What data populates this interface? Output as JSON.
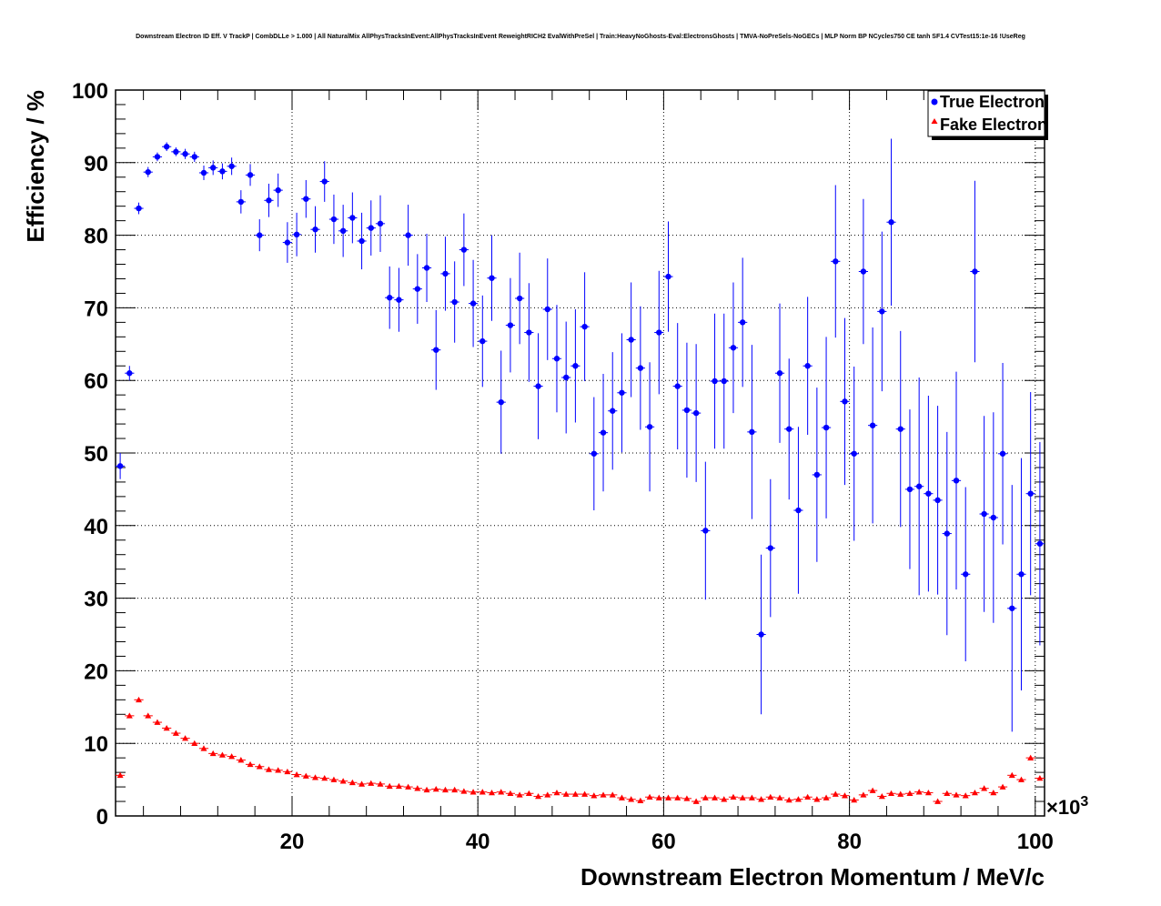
{
  "chart_data": {
    "type": "scatter",
    "title": "Downstream Electron ID Eff. V TrackP | CombDLLe > 1.000 | All NaturalMix AllPhysTracksInEvent:AllPhysTracksInEvent ReweightRICH2 EvalWithPreSel | Train:HeavyNoGhosts-Eval:ElectronsGhosts | TMVA-NoPreSels-NoGECs | MLP Norm BP NCycles750 CE tanh SF1.4 CVTest15:1e-16 !UseReg",
    "xlabel": "Downstream Electron Momentum / MeV/c",
    "ylabel": "Efficiency / %",
    "x_exponent_label": "×10",
    "x_exponent_power": "3",
    "xlim": [
      1,
      101
    ],
    "ylim": [
      0,
      100
    ],
    "x_ticks": [
      20,
      40,
      60,
      80,
      100
    ],
    "y_ticks": [
      0,
      10,
      20,
      30,
      40,
      50,
      60,
      70,
      80,
      90,
      100
    ],
    "grid": true,
    "legend_position": "top-right",
    "series": [
      {
        "name": "True Electron",
        "marker": "circle",
        "color": "#0000ff",
        "x": [
          1.5,
          2.5,
          3.5,
          4.5,
          5.5,
          6.5,
          7.5,
          8.5,
          9.5,
          10.5,
          11.5,
          12.5,
          13.5,
          14.5,
          15.5,
          16.5,
          17.5,
          18.5,
          19.5,
          20.5,
          21.5,
          22.5,
          23.5,
          24.5,
          25.5,
          26.5,
          27.5,
          28.5,
          29.5,
          30.5,
          31.5,
          32.5,
          33.5,
          34.5,
          35.5,
          36.5,
          37.5,
          38.5,
          39.5,
          40.5,
          41.5,
          42.5,
          43.5,
          44.5,
          45.5,
          46.5,
          47.5,
          48.5,
          49.5,
          50.5,
          51.5,
          52.5,
          53.5,
          54.5,
          55.5,
          56.5,
          57.5,
          58.5,
          59.5,
          60.5,
          61.5,
          62.5,
          63.5,
          64.5,
          65.5,
          66.5,
          67.5,
          68.5,
          69.5,
          70.5,
          71.5,
          72.5,
          73.5,
          74.5,
          75.5,
          76.5,
          77.5,
          78.5,
          79.5,
          80.5,
          81.5,
          82.5,
          83.5,
          84.5,
          85.5,
          86.5,
          87.5,
          88.5,
          89.5,
          90.5,
          91.5,
          92.5,
          93.5,
          94.5,
          95.5,
          96.5,
          97.5,
          98.5,
          99.5,
          100.5
        ],
        "y": [
          48.2,
          61.0,
          83.7,
          88.7,
          90.8,
          92.2,
          91.5,
          91.2,
          90.8,
          88.6,
          89.3,
          88.8,
          89.5,
          84.6,
          88.3,
          80.0,
          84.8,
          86.2,
          79.0,
          80.1,
          85.0,
          80.8,
          87.4,
          82.2,
          80.6,
          82.4,
          79.2,
          81.0,
          81.6,
          71.4,
          71.1,
          80.0,
          72.6,
          75.5,
          64.2,
          74.7,
          70.8,
          78.0,
          70.6,
          65.4,
          74.1,
          57.0,
          67.6,
          71.3,
          66.6,
          59.2,
          69.8,
          63.0,
          60.4,
          62.0,
          67.4,
          49.9,
          52.8,
          55.8,
          58.3,
          65.6,
          61.7,
          53.6,
          66.6,
          74.3,
          59.2,
          55.9,
          55.5,
          39.3,
          59.9,
          59.9,
          64.5,
          68.0,
          52.9,
          25.0,
          36.9,
          61.0,
          53.3,
          42.1,
          62.0,
          47.0,
          53.5,
          76.4,
          57.1,
          49.9,
          75.0,
          53.8,
          69.5,
          81.8,
          53.3,
          45.0,
          45.4,
          44.4,
          43.5,
          38.9,
          46.2,
          33.3,
          75.0,
          41.6,
          41.1,
          49.9,
          28.6,
          33.3,
          44.4,
          37.5
        ],
        "yerr": [
          1.8,
          1.0,
          0.8,
          0.7,
          0.6,
          0.6,
          0.6,
          0.7,
          0.7,
          1.0,
          1.0,
          1.1,
          1.2,
          1.6,
          1.5,
          2.2,
          2.3,
          2.3,
          2.8,
          3.0,
          2.6,
          3.2,
          2.8,
          3.4,
          3.6,
          3.5,
          3.9,
          3.8,
          3.9,
          4.3,
          4.4,
          4.2,
          4.8,
          4.7,
          5.5,
          5.1,
          5.6,
          5.0,
          6.0,
          6.3,
          5.9,
          7.1,
          6.5,
          6.3,
          6.8,
          7.3,
          7.0,
          7.4,
          7.7,
          7.8,
          7.5,
          7.8,
          8.1,
          8.1,
          8.2,
          7.9,
          8.5,
          8.9,
          8.5,
          7.6,
          8.7,
          9.3,
          9.5,
          9.5,
          9.3,
          9.3,
          9.0,
          8.9,
          12.0,
          11.0,
          9.5,
          9.6,
          9.7,
          11.5,
          9.5,
          12.0,
          12.5,
          10.5,
          11.5,
          12.0,
          10.0,
          13.5,
          11.0,
          11.5,
          13.5,
          11.0,
          15.0,
          13.5,
          13.0,
          14.0,
          15.0,
          12.0,
          12.5,
          13.5,
          14.5,
          12.5,
          17.0,
          16.0,
          14.0,
          14.0
        ]
      },
      {
        "name": "Fake Electron",
        "marker": "triangle",
        "color": "#ff0000",
        "x": [
          1.5,
          2.5,
          3.5,
          4.5,
          5.5,
          6.5,
          7.5,
          8.5,
          9.5,
          10.5,
          11.5,
          12.5,
          13.5,
          14.5,
          15.5,
          16.5,
          17.5,
          18.5,
          19.5,
          20.5,
          21.5,
          22.5,
          23.5,
          24.5,
          25.5,
          26.5,
          27.5,
          28.5,
          29.5,
          30.5,
          31.5,
          32.5,
          33.5,
          34.5,
          35.5,
          36.5,
          37.5,
          38.5,
          39.5,
          40.5,
          41.5,
          42.5,
          43.5,
          44.5,
          45.5,
          46.5,
          47.5,
          48.5,
          49.5,
          50.5,
          51.5,
          52.5,
          53.5,
          54.5,
          55.5,
          56.5,
          57.5,
          58.5,
          59.5,
          60.5,
          61.5,
          62.5,
          63.5,
          64.5,
          65.5,
          66.5,
          67.5,
          68.5,
          69.5,
          70.5,
          71.5,
          72.5,
          73.5,
          74.5,
          75.5,
          76.5,
          77.5,
          78.5,
          79.5,
          80.5,
          81.5,
          82.5,
          83.5,
          84.5,
          85.5,
          86.5,
          87.5,
          88.5,
          89.5,
          90.5,
          91.5,
          92.5,
          93.5,
          94.5,
          95.5,
          96.5,
          97.5,
          98.5,
          99.5,
          100.5
        ],
        "y": [
          5.6,
          13.8,
          16.0,
          13.8,
          12.9,
          12.1,
          11.4,
          10.7,
          10.0,
          9.3,
          8.6,
          8.4,
          8.2,
          7.7,
          7.1,
          6.8,
          6.4,
          6.3,
          6.1,
          5.7,
          5.5,
          5.3,
          5.2,
          5.0,
          4.8,
          4.6,
          4.4,
          4.5,
          4.4,
          4.1,
          4.1,
          4.0,
          3.8,
          3.6,
          3.7,
          3.6,
          3.6,
          3.4,
          3.3,
          3.3,
          3.2,
          3.3,
          3.1,
          2.9,
          3.1,
          2.7,
          2.9,
          3.2,
          3.0,
          3.0,
          3.0,
          2.8,
          2.9,
          2.9,
          2.5,
          2.3,
          2.1,
          2.6,
          2.5,
          2.5,
          2.5,
          2.4,
          2.0,
          2.5,
          2.5,
          2.3,
          2.6,
          2.5,
          2.5,
          2.3,
          2.6,
          2.5,
          2.2,
          2.3,
          2.6,
          2.3,
          2.5,
          3.0,
          2.8,
          2.2,
          2.9,
          3.5,
          2.7,
          3.1,
          3.0,
          3.1,
          3.3,
          3.2,
          2.0,
          3.1,
          2.9,
          2.8,
          3.2,
          3.8,
          3.2,
          4.0,
          5.6,
          5.0,
          8.0,
          5.2
        ]
      }
    ]
  }
}
